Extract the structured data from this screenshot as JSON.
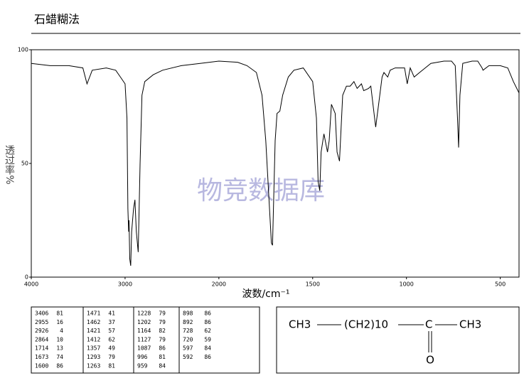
{
  "chart_data": {
    "type": "line",
    "title": "石蜡糊法",
    "xlabel": "波数/cm⁻¹",
    "ylabel": "透过率%",
    "watermark": "物竞数据库",
    "color": "#000000",
    "xlim": [
      4000,
      400
    ],
    "xticks": [
      4000,
      3000,
      2000,
      1500,
      1000,
      500
    ],
    "ylim": [
      0,
      100
    ],
    "yticks": [
      0,
      50,
      100
    ],
    "x": [
      4000,
      3800,
      3600,
      3450,
      3406,
      3350,
      3200,
      3100,
      3050,
      3000,
      2980,
      2970,
      2962,
      2958,
      2950,
      2940,
      2930,
      2910,
      2895,
      2880,
      2860,
      2840,
      2820,
      2790,
      2700,
      2600,
      2400,
      2200,
      2000,
      1900,
      1850,
      1800,
      1770,
      1750,
      1730,
      1720,
      1714,
      1700,
      1690,
      1675,
      1660,
      1630,
      1600,
      1550,
      1500,
      1480,
      1471,
      1462,
      1455,
      1440,
      1421,
      1412,
      1400,
      1380,
      1370,
      1357,
      1340,
      1320,
      1300,
      1280,
      1263,
      1240,
      1228,
      1202,
      1190,
      1170,
      1164,
      1150,
      1130,
      1120,
      1100,
      1087,
      1060,
      1010,
      996,
      980,
      959,
      930,
      900,
      870,
      800,
      760,
      740,
      728,
      722,
      715,
      700,
      650,
      620,
      597,
      592,
      560,
      500,
      460,
      430,
      400
    ],
    "values": [
      94,
      93,
      93,
      92,
      85,
      91,
      92,
      91,
      88,
      85,
      70,
      30,
      20,
      25,
      8,
      5,
      20,
      30,
      34,
      20,
      11,
      50,
      80,
      86,
      89,
      91,
      93,
      94,
      95,
      94.5,
      93,
      90,
      80,
      60,
      30,
      15,
      14,
      60,
      72,
      73,
      80,
      88,
      91,
      92,
      86,
      70,
      42,
      38,
      55,
      63,
      55,
      60,
      76,
      72,
      55,
      51,
      80,
      84,
      84,
      86,
      83,
      85,
      82,
      83,
      84,
      70,
      66,
      75,
      88,
      90,
      88,
      91,
      92,
      92,
      85,
      92,
      88,
      90,
      92,
      94,
      95,
      95,
      93,
      70,
      57,
      80,
      94,
      95,
      95,
      92,
      91,
      93,
      93,
      92,
      86,
      81
    ],
    "grid": false
  },
  "table": {
    "peaks": [
      [
        3406,
        81
      ],
      [
        2955,
        16
      ],
      [
        2926,
        4
      ],
      [
        2864,
        10
      ],
      [
        1714,
        13
      ],
      [
        1673,
        74
      ],
      [
        1600,
        86
      ],
      [
        1471,
        41
      ],
      [
        1462,
        37
      ],
      [
        1421,
        57
      ],
      [
        1412,
        62
      ],
      [
        1357,
        49
      ],
      [
        1293,
        79
      ],
      [
        1263,
        81
      ],
      [
        1228,
        79
      ],
      [
        1202,
        79
      ],
      [
        1164,
        82
      ],
      [
        1127,
        79
      ],
      [
        1087,
        86
      ],
      [
        996,
        81
      ],
      [
        959,
        84
      ],
      [
        898,
        86
      ],
      [
        892,
        86
      ],
      [
        728,
        62
      ],
      [
        720,
        59
      ],
      [
        597,
        84
      ],
      [
        592,
        86
      ]
    ]
  },
  "structure": {
    "groups": [
      "CH3",
      "(CH2)10",
      "C",
      "CH3"
    ],
    "oxygen": "O"
  }
}
